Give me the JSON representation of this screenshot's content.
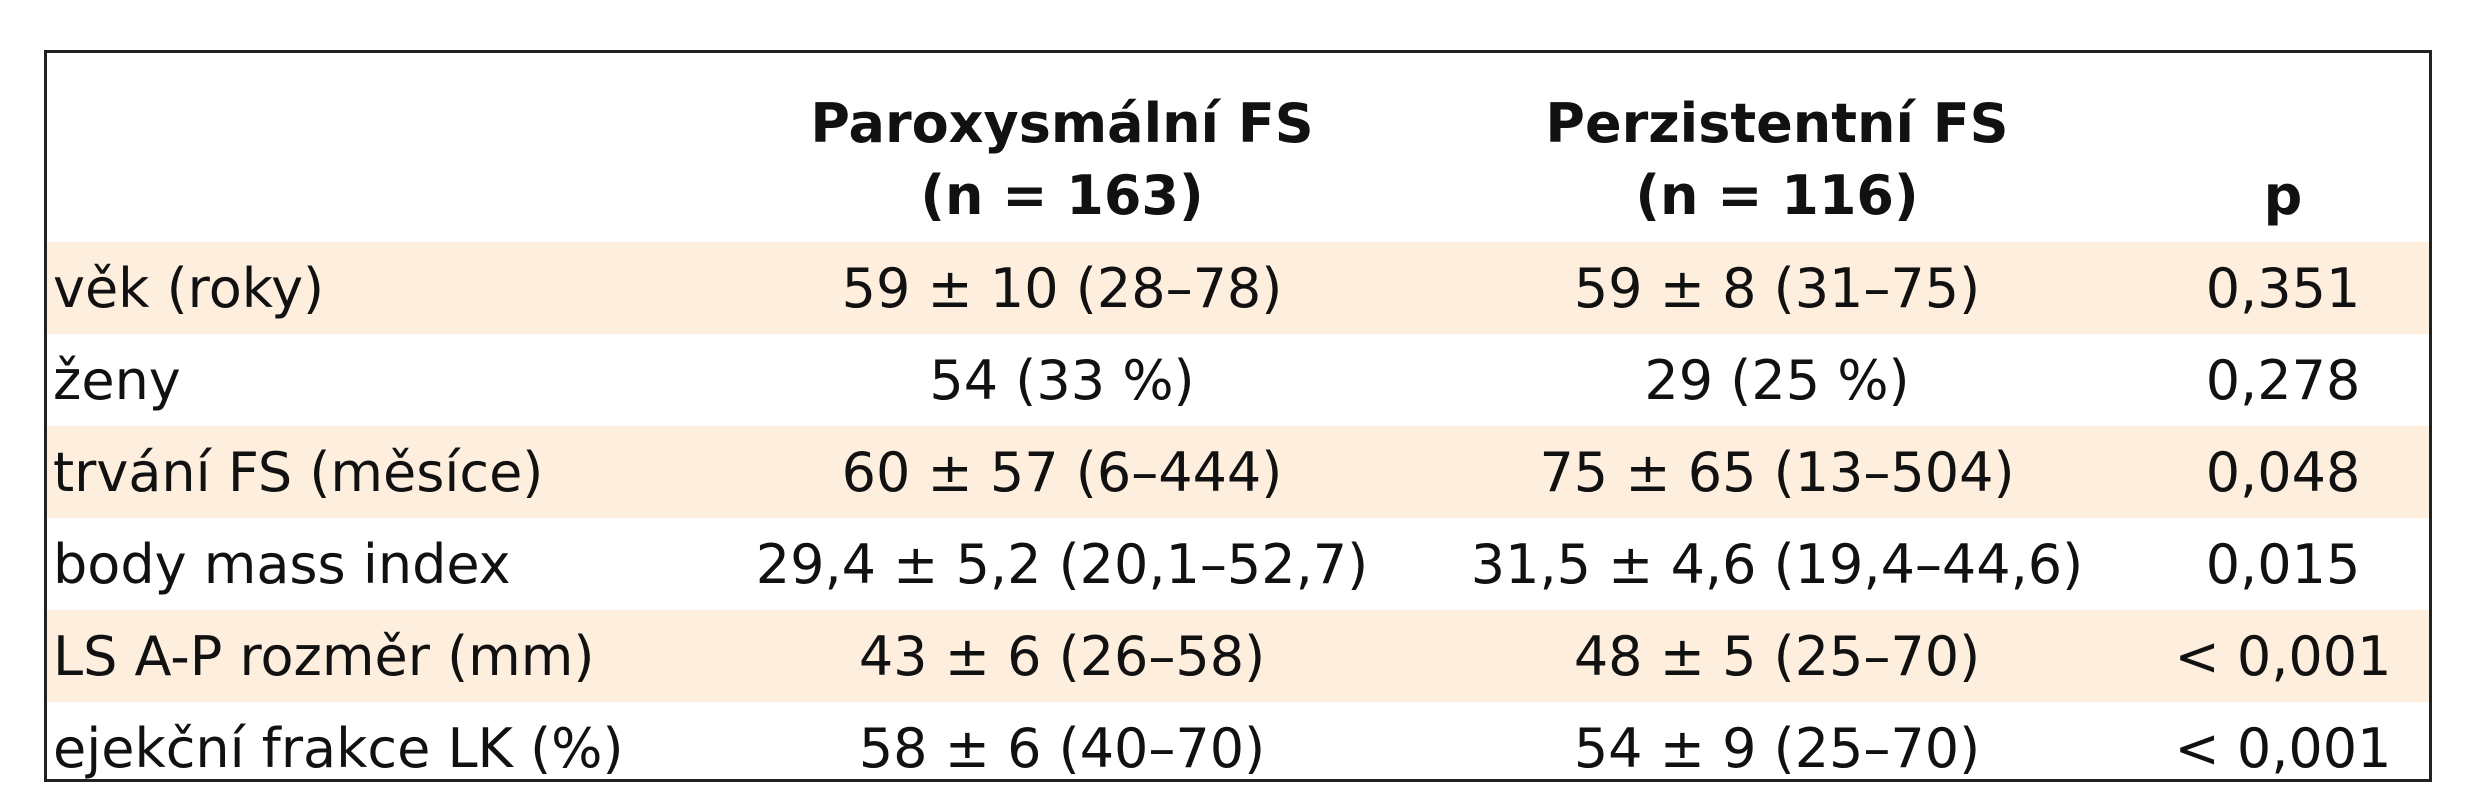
{
  "table": {
    "columns": [
      {
        "lines": []
      },
      {
        "lines": [
          "Paroxysmální FS",
          "(n = 163)"
        ]
      },
      {
        "lines": [
          "Perzistentní FS",
          "(n = 116)"
        ]
      },
      {
        "lines": [
          "p"
        ]
      }
    ],
    "rows": [
      [
        "věk (roky)",
        "59 ± 10 (28–78)",
        "59 ± 8 (31–75)",
        "0,351"
      ],
      [
        "ženy",
        "54 (33 %)",
        "29 (25 %)",
        "0,278"
      ],
      [
        "trvání FS (měsíce)",
        "60 ± 57 (6–444)",
        "75 ± 65 (13–504)",
        "0,048"
      ],
      [
        "body mass index",
        "29,4 ± 5,2 (20,1–52,7)",
        "31,5 ± 4,6 (19,4–44,6)",
        "0,015"
      ],
      [
        "LS A-P rozměr (mm)",
        "43 ± 6 (26–58)",
        "48 ± 5 (25–70)",
        "< 0,001"
      ],
      [
        "ejekční frakce LK (%)",
        "58 ± 6 (40–70)",
        "54 ± 9 (25–70)",
        "< 0,001"
      ]
    ]
  }
}
